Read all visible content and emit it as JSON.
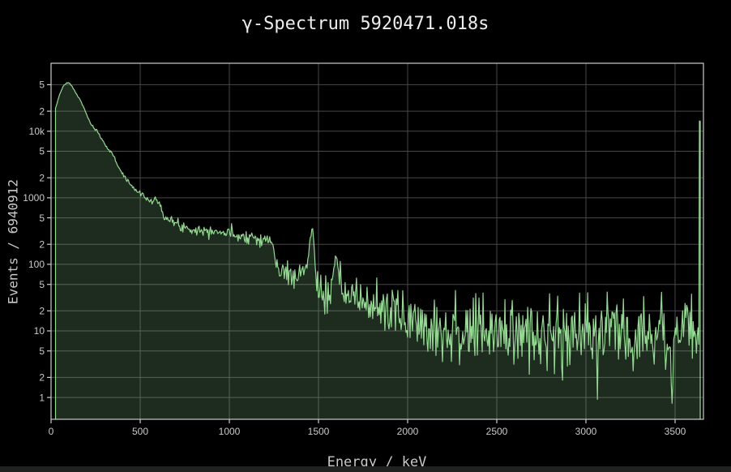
{
  "window": {
    "background": "#000000",
    "bottom_edge_color": "#202222"
  },
  "chart": {
    "title": "γ-Spectrum 5920471.018s",
    "xlabel": "Energy / keV",
    "ylabel": "Events / 6940912"
  },
  "chart_data": {
    "type": "area",
    "title": "γ-Spectrum 5920471.018s",
    "xlabel": "Energy / keV",
    "ylabel": "Events / 6940912",
    "x_scale": "linear",
    "y_scale": "log",
    "xlim": [
      0,
      3659
    ],
    "ylim": [
      0.47,
      105000
    ],
    "x_ticks": [
      0,
      500,
      1000,
      1500,
      2000,
      2500,
      3000,
      3500
    ],
    "y_ticks": [
      {
        "v": 1,
        "label": "1"
      },
      {
        "v": 2,
        "label": "2"
      },
      {
        "v": 5,
        "label": "5"
      },
      {
        "v": 10,
        "label": "10"
      },
      {
        "v": 20,
        "label": "2"
      },
      {
        "v": 50,
        "label": "5"
      },
      {
        "v": 100,
        "label": "100"
      },
      {
        "v": 200,
        "label": "2"
      },
      {
        "v": 500,
        "label": "5"
      },
      {
        "v": 1000,
        "label": "1000"
      },
      {
        "v": 2000,
        "label": "2"
      },
      {
        "v": 5000,
        "label": "5"
      },
      {
        "v": 10000,
        "label": "10k"
      },
      {
        "v": 20000,
        "label": "2"
      },
      {
        "v": 50000,
        "label": "5"
      }
    ],
    "grid": true,
    "legend": "none",
    "colors": {
      "background": "#000000",
      "gridline": "#484848",
      "spine": "#cccccc",
      "tick_label": "#c9c9c9",
      "title": "#ededed",
      "axis_label": "#c9c9c9",
      "line": "#94db92",
      "fill": "rgba(140,210,145,0.21)"
    },
    "series": [
      {
        "name": "gamma-spectrum",
        "bin_width_kev": 4.55,
        "data_start_kev": 25,
        "binned_end_kev": 3634,
        "noise": {
          "model": "poisson-log",
          "amplitude": 0.8,
          "cap_decades": 0.6,
          "low_count_factor": 0.25,
          "seed": 7
        },
        "features": {
          "photopeaks_kev": [
            1461,
            1597
          ],
          "compton_edge_kev": 1243,
          "deep_dips_kev": [
            2681,
            2867,
            3063,
            3486
          ],
          "overflow_bin": {
            "energy_kev": 3638,
            "counts": 14200
          }
        },
        "envelope_kev_counts": [
          [
            25,
            21500
          ],
          [
            28,
            23500
          ],
          [
            33,
            26000
          ],
          [
            40,
            30500
          ],
          [
            48,
            35500
          ],
          [
            56,
            40500
          ],
          [
            64,
            45000
          ],
          [
            72,
            48500
          ],
          [
            80,
            51000
          ],
          [
            88,
            52800
          ],
          [
            96,
            53400
          ],
          [
            104,
            52400
          ],
          [
            112,
            49500
          ],
          [
            120,
            46000
          ],
          [
            130,
            41500
          ],
          [
            140,
            37000
          ],
          [
            150,
            33500
          ],
          [
            160,
            30500
          ],
          [
            172,
            26500
          ],
          [
            184,
            22500
          ],
          [
            196,
            18800
          ],
          [
            210,
            15300
          ],
          [
            224,
            12800
          ],
          [
            238,
            11200
          ],
          [
            248,
            10400
          ],
          [
            255,
            10600
          ],
          [
            262,
            9500
          ],
          [
            275,
            8400
          ],
          [
            290,
            7200
          ],
          [
            305,
            6200
          ],
          [
            320,
            5500
          ],
          [
            335,
            4800
          ],
          [
            348,
            4250
          ],
          [
            354,
            4450
          ],
          [
            362,
            3600
          ],
          [
            376,
            3000
          ],
          [
            392,
            2500
          ],
          [
            410,
            2100
          ],
          [
            430,
            1800
          ],
          [
            452,
            1520
          ],
          [
            475,
            1300
          ],
          [
            495,
            1170
          ],
          [
            508,
            1150
          ],
          [
            514,
            1260
          ],
          [
            522,
            1050
          ],
          [
            538,
            965
          ],
          [
            556,
            905
          ],
          [
            572,
            880
          ],
          [
            580,
            960
          ],
          [
            586,
            1010
          ],
          [
            594,
            820
          ],
          [
            602,
            830
          ],
          [
            610,
            900
          ],
          [
            618,
            740
          ],
          [
            628,
            600
          ],
          [
            640,
            520
          ],
          [
            655,
            475
          ],
          [
            672,
            440
          ],
          [
            692,
            415
          ],
          [
            715,
            392
          ],
          [
            740,
            372
          ],
          [
            768,
            352
          ],
          [
            800,
            338
          ],
          [
            835,
            328
          ],
          [
            870,
            322
          ],
          [
            900,
            330
          ],
          [
            911,
            352
          ],
          [
            922,
            322
          ],
          [
            950,
            305
          ],
          [
            980,
            296
          ],
          [
            1010,
            288
          ],
          [
            1045,
            277
          ],
          [
            1080,
            267
          ],
          [
            1110,
            262
          ],
          [
            1120,
            272
          ],
          [
            1132,
            258
          ],
          [
            1160,
            248
          ],
          [
            1190,
            238
          ],
          [
            1215,
            230
          ],
          [
            1232,
            224
          ],
          [
            1242,
            205
          ],
          [
            1250,
            150
          ],
          [
            1258,
            112
          ],
          [
            1268,
            92
          ],
          [
            1282,
            82
          ],
          [
            1300,
            76
          ],
          [
            1330,
            71
          ],
          [
            1365,
            69
          ],
          [
            1400,
            71
          ],
          [
            1425,
            82
          ],
          [
            1438,
            105
          ],
          [
            1448,
            170
          ],
          [
            1455,
            270
          ],
          [
            1461,
            340
          ],
          [
            1467,
            280
          ],
          [
            1474,
            185
          ],
          [
            1481,
            110
          ],
          [
            1489,
            68
          ],
          [
            1500,
            46
          ],
          [
            1515,
            36
          ],
          [
            1532,
            31
          ],
          [
            1550,
            31
          ],
          [
            1565,
            36
          ],
          [
            1578,
            52
          ],
          [
            1588,
            85
          ],
          [
            1596,
            116
          ],
          [
            1603,
            100
          ],
          [
            1611,
            68
          ],
          [
            1620,
            48
          ],
          [
            1632,
            41
          ],
          [
            1650,
            37
          ],
          [
            1680,
            33
          ],
          [
            1715,
            30
          ],
          [
            1755,
            27
          ],
          [
            1800,
            25
          ],
          [
            1850,
            22
          ],
          [
            1905,
            19.5
          ],
          [
            1960,
            17
          ],
          [
            2020,
            15
          ],
          [
            2085,
            13
          ],
          [
            2150,
            11.8
          ],
          [
            2220,
            10.6
          ],
          [
            2290,
            10
          ],
          [
            2360,
            9.6
          ],
          [
            2430,
            9.3
          ],
          [
            2500,
            9.3
          ],
          [
            2560,
            9.6
          ],
          [
            2604,
            10.5
          ],
          [
            2612,
            13.5
          ],
          [
            2620,
            12
          ],
          [
            2635,
            10
          ],
          [
            2675,
            9.2
          ],
          [
            2681,
            1.8
          ],
          [
            2687,
            9.2
          ],
          [
            2730,
            9
          ],
          [
            2790,
            9.1
          ],
          [
            2861,
            9
          ],
          [
            2867,
            0.95
          ],
          [
            2873,
            9
          ],
          [
            2930,
            9.2
          ],
          [
            3000,
            9.4
          ],
          [
            3058,
            9.4
          ],
          [
            3063,
            2.6
          ],
          [
            3068,
            9.4
          ],
          [
            3130,
            9.7
          ],
          [
            3200,
            9.9
          ],
          [
            3280,
            10
          ],
          [
            3360,
            10.1
          ],
          [
            3440,
            10.1
          ],
          [
            3486,
            3
          ],
          [
            3492,
            10.1
          ],
          [
            3520,
            10.2
          ],
          [
            3600,
            10.2
          ],
          [
            3634,
            10.2
          ],
          [
            3636.5,
            14200
          ],
          [
            3641,
            14200
          ]
        ]
      }
    ]
  }
}
